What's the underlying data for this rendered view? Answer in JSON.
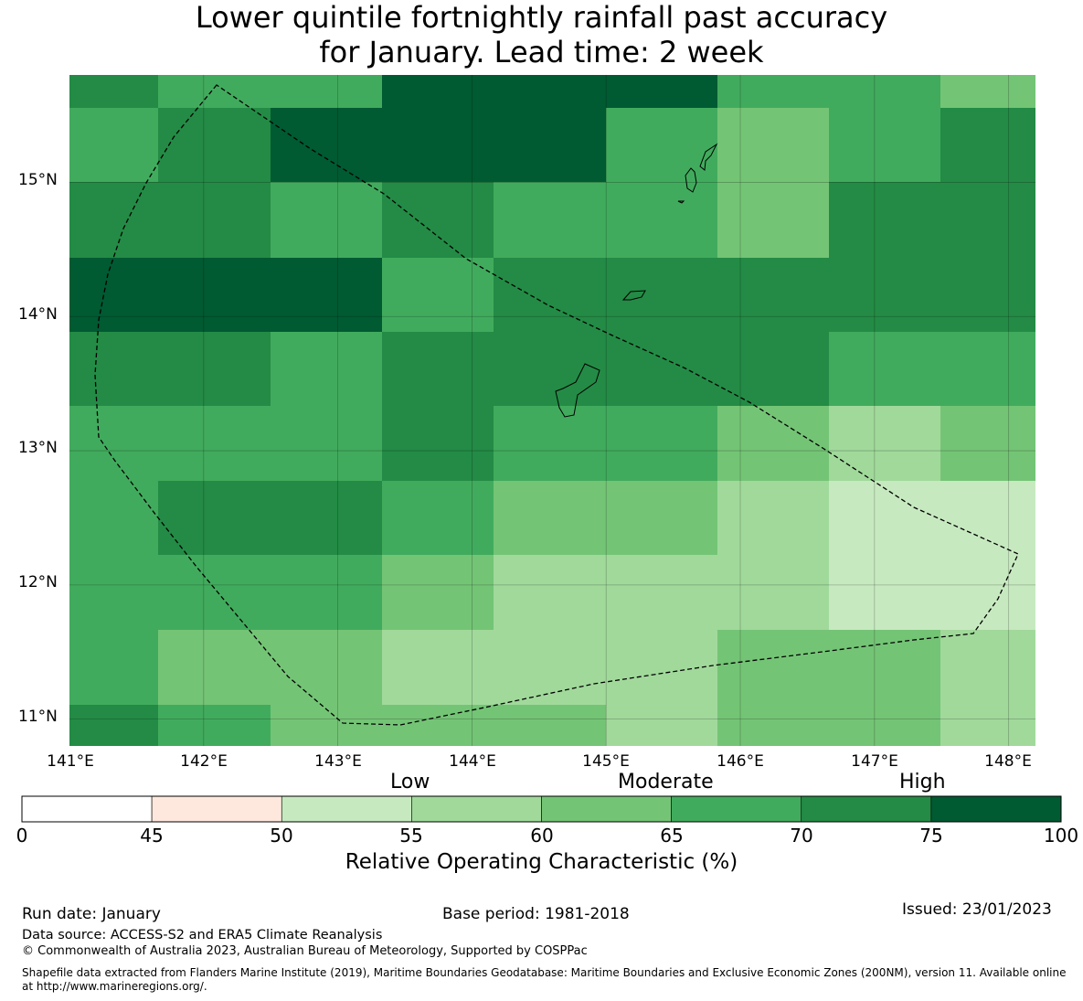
{
  "title": {
    "line1": "Lower quintile fortnightly rainfall past accuracy",
    "line2": "for January. Lead time: 2 week"
  },
  "map": {
    "lon_range": [
      141.0,
      148.2
    ],
    "lat_range": [
      10.8,
      15.8
    ],
    "lon_ticks": [
      "141°E",
      "142°E",
      "143°E",
      "144°E",
      "145°E",
      "146°E",
      "147°E",
      "148°E"
    ],
    "lat_ticks": [
      "15°N",
      "14°N",
      "13°N",
      "12°N",
      "11°N"
    ],
    "grid_cells_roc": [
      [
        70,
        65,
        65,
        75,
        75,
        75,
        65,
        65,
        60
      ],
      [
        65,
        70,
        80,
        75,
        75,
        65,
        60,
        65,
        70
      ],
      [
        70,
        70,
        65,
        70,
        65,
        65,
        60,
        70,
        70
      ],
      [
        80,
        80,
        80,
        65,
        70,
        70,
        70,
        70,
        70
      ],
      [
        70,
        70,
        65,
        70,
        70,
        70,
        70,
        65,
        65
      ],
      [
        65,
        65,
        65,
        70,
        65,
        65,
        60,
        55,
        60
      ],
      [
        65,
        70,
        70,
        65,
        60,
        60,
        55,
        50,
        50
      ],
      [
        65,
        65,
        65,
        60,
        55,
        55,
        55,
        50,
        50
      ],
      [
        65,
        60,
        60,
        55,
        55,
        55,
        60,
        60,
        55
      ],
      [
        70,
        65,
        60,
        60,
        60,
        55,
        60,
        60,
        55
      ]
    ]
  },
  "colorbar": {
    "categories": [
      "Low",
      "Moderate",
      "High"
    ],
    "ticks": [
      "0",
      "45",
      "50",
      "55",
      "60",
      "65",
      "70",
      "75",
      "100"
    ],
    "colors": [
      "#ffffff",
      "#fee8de",
      "#c7e9c0",
      "#a1d99b",
      "#74c476",
      "#41ab5d",
      "#238b45",
      "#005a32"
    ],
    "label": "Relative Operating Characteristic (%)"
  },
  "footer": {
    "run_date": "Run date: January",
    "base_period": "Base period: 1981-2018",
    "issued": "Issued: 23/01/2023",
    "data_source": "Data source: ACCESS-S2 and ERA5 Climate Reanalysis",
    "copyright": "© Commonwealth of Australia 2023, Australian Bureau of Meteorology, Supported by COSPPac",
    "shapefile": "Shapefile data extracted from Flanders Marine Institute (2019), Maritime Boundaries Geodatabase: Maritime Boundaries and Exclusive Economic Zones (200NM), version 11. Available online at http://www.marineregions.org/."
  }
}
